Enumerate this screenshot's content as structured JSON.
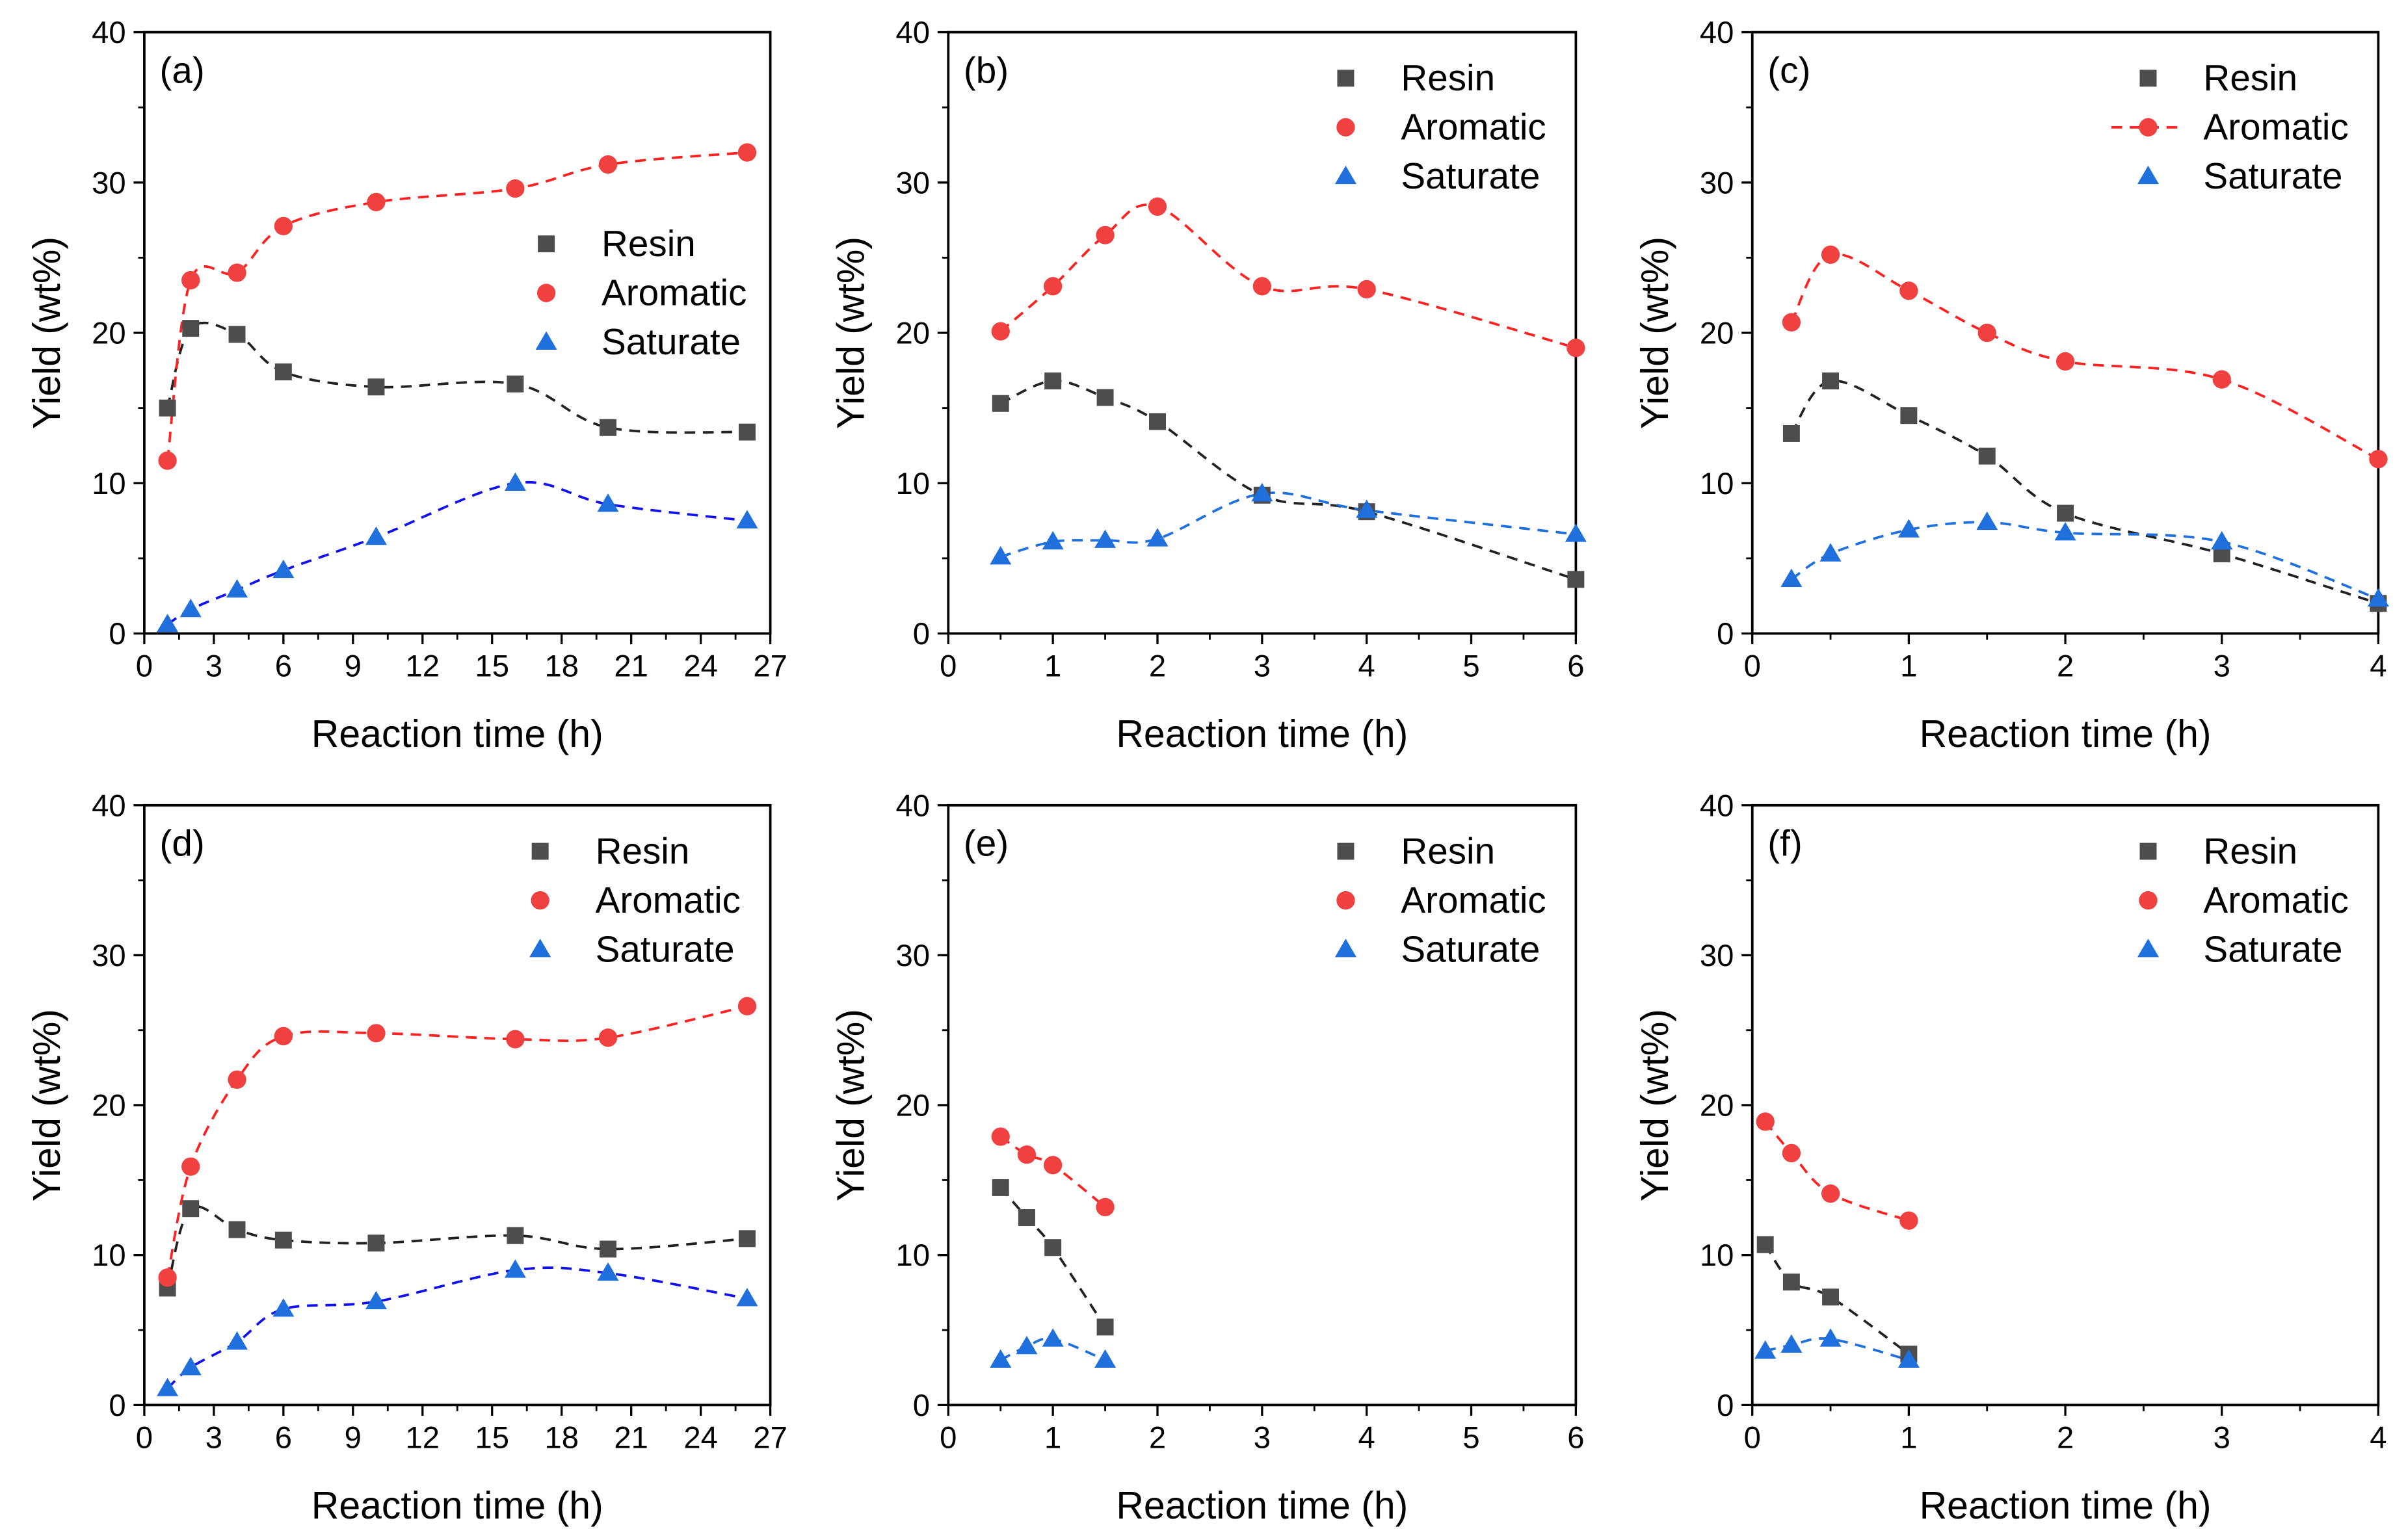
{
  "colors": {
    "resin": "#4d4d4d",
    "aromatic": "#f04040",
    "saturate": "#1f6fdc",
    "resin_fit": "#222222",
    "aromatic_fit": "#ff2020",
    "saturate_fit_ad": "#1010f0",
    "saturate_fit_other": "#1f6fdc"
  },
  "chart_data": [
    {
      "type": "scatter",
      "label": "(a)",
      "xlabel": "Reaction time (h)",
      "ylabel": "Yield (wt%)",
      "xlim": [
        0,
        27
      ],
      "ylim": [
        0,
        40
      ],
      "xticks": [
        "0",
        "3",
        "6",
        "9",
        "12",
        "15",
        "18",
        "21",
        "24",
        "27"
      ],
      "yticks": [
        "0",
        "10",
        "20",
        "30",
        "40"
      ],
      "legend_position": "center-right",
      "x": [
        1,
        2,
        4,
        6,
        10,
        16,
        20,
        26
      ],
      "series": [
        {
          "name": "Resin",
          "values": [
            15.0,
            20.3,
            19.9,
            17.4,
            16.4,
            16.6,
            13.7,
            13.4
          ]
        },
        {
          "name": "Aromatic",
          "values": [
            11.5,
            23.5,
            24.0,
            27.1,
            28.7,
            29.6,
            31.2,
            32.0
          ]
        },
        {
          "name": "Saturate",
          "values": [
            0.6,
            1.6,
            2.9,
            4.2,
            6.4,
            10.0,
            8.6,
            7.5
          ]
        }
      ]
    },
    {
      "type": "scatter",
      "label": "(b)",
      "xlabel": "Reaction time (h)",
      "ylabel": "Yield (wt%)",
      "xlim": [
        0,
        6
      ],
      "ylim": [
        0,
        40
      ],
      "xticks": [
        "0",
        "1",
        "2",
        "3",
        "4",
        "5",
        "6"
      ],
      "yticks": [
        "0",
        "10",
        "20",
        "30",
        "40"
      ],
      "legend_position": "top-right",
      "x": [
        0.5,
        1,
        1.5,
        2,
        3,
        4,
        6
      ],
      "series": [
        {
          "name": "Resin",
          "values": [
            15.3,
            16.8,
            15.7,
            14.1,
            9.2,
            8.1,
            3.6
          ]
        },
        {
          "name": "Aromatic",
          "values": [
            20.1,
            23.1,
            26.5,
            28.4,
            23.1,
            22.9,
            19.0
          ]
        },
        {
          "name": "Saturate",
          "values": [
            5.1,
            6.1,
            6.2,
            6.3,
            9.3,
            8.2,
            6.6
          ]
        }
      ]
    },
    {
      "type": "scatter",
      "label": "(c)",
      "xlabel": "Reaction time (h)",
      "ylabel": "Yield (wt%)",
      "xlim": [
        0,
        4
      ],
      "ylim": [
        0,
        40
      ],
      "xticks": [
        "0",
        "1",
        "2",
        "3",
        "4"
      ],
      "yticks": [
        "0",
        "10",
        "20",
        "30",
        "40"
      ],
      "legend_position": "top-right",
      "x": [
        0.25,
        0.5,
        1,
        1.5,
        2,
        3,
        4
      ],
      "series": [
        {
          "name": "Resin",
          "values": [
            13.3,
            16.8,
            14.5,
            11.8,
            8.0,
            5.3,
            2.0
          ]
        },
        {
          "name": "Aromatic",
          "values": [
            20.7,
            25.2,
            22.8,
            20.0,
            18.1,
            16.9,
            11.6
          ]
        },
        {
          "name": "Saturate",
          "values": [
            3.6,
            5.3,
            6.9,
            7.4,
            6.7,
            6.1,
            2.3
          ]
        }
      ]
    },
    {
      "type": "scatter",
      "label": "(d)",
      "xlabel": "Reaction time (h)",
      "ylabel": "Yield (wt%)",
      "xlim": [
        0,
        27
      ],
      "ylim": [
        0,
        40
      ],
      "xticks": [
        "0",
        "3",
        "6",
        "9",
        "12",
        "15",
        "18",
        "21",
        "24",
        "27"
      ],
      "yticks": [
        "0",
        "10",
        "20",
        "30",
        "40"
      ],
      "legend_position": "top-right",
      "x": [
        1,
        2,
        4,
        6,
        10,
        16,
        20,
        26
      ],
      "series": [
        {
          "name": "Resin",
          "values": [
            7.8,
            13.1,
            11.7,
            11.0,
            10.8,
            11.3,
            10.4,
            11.1
          ]
        },
        {
          "name": "Aromatic",
          "values": [
            8.5,
            15.9,
            21.7,
            24.6,
            24.8,
            24.4,
            24.5,
            26.6
          ]
        },
        {
          "name": "Saturate",
          "values": [
            1.1,
            2.5,
            4.2,
            6.4,
            6.9,
            9.0,
            8.8,
            7.1
          ]
        }
      ]
    },
    {
      "type": "scatter",
      "label": "(e)",
      "xlabel": "Reaction time (h)",
      "ylabel": "Yield (wt%)",
      "xlim": [
        0,
        6
      ],
      "ylim": [
        0,
        40
      ],
      "xticks": [
        "0",
        "1",
        "2",
        "3",
        "4",
        "5",
        "6"
      ],
      "yticks": [
        "0",
        "10",
        "20",
        "30",
        "40"
      ],
      "legend_position": "top-right",
      "x": [
        0.5,
        0.75,
        1,
        1.5
      ],
      "series": [
        {
          "name": "Resin",
          "values": [
            14.5,
            12.5,
            10.5,
            5.2
          ]
        },
        {
          "name": "Aromatic",
          "values": [
            17.9,
            16.7,
            16.0,
            13.2
          ]
        },
        {
          "name": "Saturate",
          "values": [
            3.0,
            3.9,
            4.4,
            3.0
          ]
        }
      ]
    },
    {
      "type": "scatter",
      "label": "(f)",
      "xlabel": "Reaction time (h)",
      "ylabel": "Yield (wt%)",
      "xlim": [
        0,
        4
      ],
      "ylim": [
        0,
        40
      ],
      "xticks": [
        "0",
        "1",
        "2",
        "3",
        "4"
      ],
      "yticks": [
        "0",
        "10",
        "20",
        "30",
        "40"
      ],
      "legend_position": "top-right",
      "x": [
        0.083,
        0.25,
        0.5,
        1
      ],
      "series": [
        {
          "name": "Resin",
          "values": [
            10.7,
            8.2,
            7.2,
            3.4
          ]
        },
        {
          "name": "Aromatic",
          "values": [
            18.9,
            16.8,
            14.1,
            12.3
          ]
        },
        {
          "name": "Saturate",
          "values": [
            3.6,
            4.0,
            4.4,
            3.0
          ]
        }
      ]
    }
  ]
}
